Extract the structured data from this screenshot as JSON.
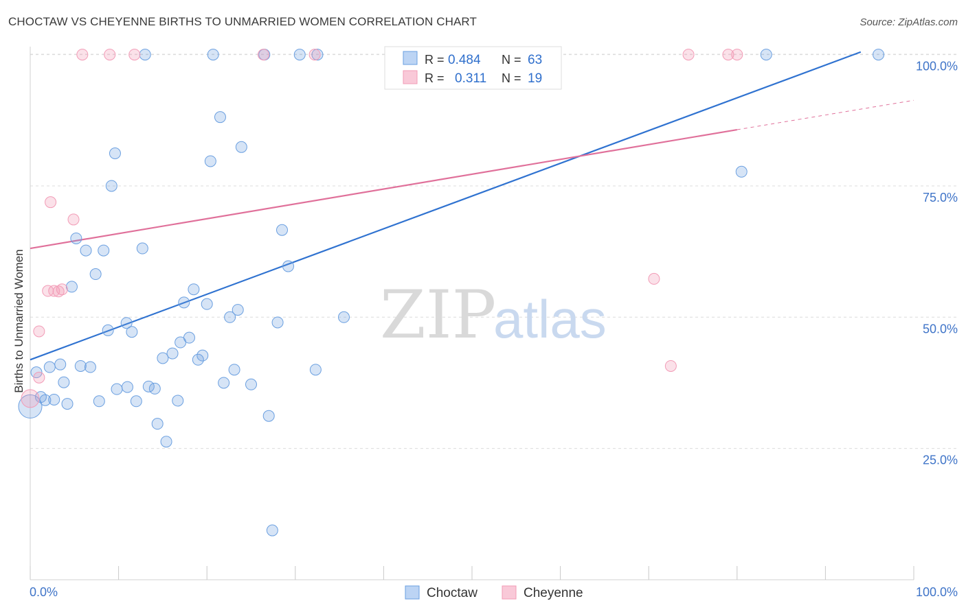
{
  "header": {
    "title": "CHOCTAW VS CHEYENNE BIRTHS TO UNMARRIED WOMEN CORRELATION CHART",
    "source": "Source: ZipAtlas.com"
  },
  "watermark": {
    "zip": "ZIP",
    "atlas": "atlas"
  },
  "legend_box": {
    "rows": [
      {
        "r_label": "R =",
        "r_value": "0.484",
        "n_label": "N =",
        "n_value": "63"
      },
      {
        "r_label": "R =",
        "r_value": "0.311",
        "n_label": "N =",
        "n_value": "19"
      }
    ]
  },
  "chart_data": {
    "type": "scatter",
    "title": "CHOCTAW VS CHEYENNE BIRTHS TO UNMARRIED WOMEN CORRELATION CHART",
    "xlabel": "",
    "ylabel": "Births to Unmarried Women",
    "xlim": [
      0,
      100
    ],
    "ylim": [
      0,
      104
    ],
    "x_tick_labels": [
      "0.0%",
      "100.0%"
    ],
    "y_ticks": [
      25,
      50,
      75,
      100
    ],
    "y_tick_labels": [
      "25.0%",
      "50.0%",
      "75.0%",
      "100.0%"
    ],
    "grid": true,
    "legend_position": "bottom-center",
    "colors": {
      "choctaw": "#6a9fe0",
      "cheyenne": "#f29bb6",
      "choctaw_line": "#2f72d0",
      "cheyenne_line": "#e0709a",
      "axis_text": "#3f74c8"
    },
    "series": [
      {
        "name": "Choctaw",
        "R": 0.484,
        "N": 63,
        "trend": {
          "x0": 0,
          "y0": 41.9,
          "x1": 94,
          "y1": 100.5
        },
        "points": [
          [
            0.0,
            33.0
          ],
          [
            0.7,
            39.5
          ],
          [
            1.2,
            34.8
          ],
          [
            1.7,
            34.2
          ],
          [
            2.2,
            40.5
          ],
          [
            2.7,
            34.3
          ],
          [
            3.4,
            41.0
          ],
          [
            3.8,
            37.6
          ],
          [
            4.2,
            33.5
          ],
          [
            4.7,
            55.8
          ],
          [
            5.2,
            65.0
          ],
          [
            5.7,
            40.7
          ],
          [
            6.3,
            62.7
          ],
          [
            6.8,
            40.5
          ],
          [
            7.4,
            58.2
          ],
          [
            7.8,
            34.0
          ],
          [
            8.3,
            62.7
          ],
          [
            8.8,
            47.5
          ],
          [
            9.2,
            75.0
          ],
          [
            9.6,
            81.2
          ],
          [
            9.8,
            36.3
          ],
          [
            10.9,
            48.9
          ],
          [
            11.0,
            36.7
          ],
          [
            11.5,
            47.2
          ],
          [
            12.0,
            34.0
          ],
          [
            12.7,
            63.1
          ],
          [
            13.0,
            100.0
          ],
          [
            13.4,
            36.8
          ],
          [
            14.1,
            36.4
          ],
          [
            14.4,
            29.7
          ],
          [
            15.0,
            42.2
          ],
          [
            15.4,
            26.3
          ],
          [
            16.1,
            43.1
          ],
          [
            16.7,
            34.1
          ],
          [
            17.0,
            45.2
          ],
          [
            17.4,
            52.8
          ],
          [
            18.0,
            46.1
          ],
          [
            18.5,
            55.3
          ],
          [
            19.0,
            41.9
          ],
          [
            19.5,
            42.7
          ],
          [
            20.0,
            52.5
          ],
          [
            20.4,
            79.7
          ],
          [
            20.7,
            100.0
          ],
          [
            21.5,
            88.1
          ],
          [
            21.9,
            37.5
          ],
          [
            22.6,
            50.0
          ],
          [
            23.1,
            40.0
          ],
          [
            23.5,
            51.4
          ],
          [
            23.9,
            82.4
          ],
          [
            25.0,
            37.2
          ],
          [
            26.5,
            100.0
          ],
          [
            27.0,
            31.2
          ],
          [
            27.4,
            9.4
          ],
          [
            28.0,
            49.0
          ],
          [
            28.5,
            66.6
          ],
          [
            29.2,
            59.7
          ],
          [
            30.5,
            100.0
          ],
          [
            32.3,
            40.0
          ],
          [
            32.5,
            100.0
          ],
          [
            35.5,
            50.0
          ],
          [
            80.5,
            77.7
          ],
          [
            83.3,
            100.0
          ],
          [
            96.0,
            100.0
          ]
        ]
      },
      {
        "name": "Cheyenne",
        "R": 0.311,
        "N": 19,
        "trend": {
          "x0": 0,
          "y0": 63.1,
          "x1": 80,
          "y1": 85.7,
          "dash_to_x": 100,
          "dash_to_y": 91.3
        },
        "points": [
          [
            0.0,
            34.5
          ],
          [
            1.0,
            38.5
          ],
          [
            1.0,
            47.3
          ],
          [
            2.0,
            55.0
          ],
          [
            2.3,
            71.9
          ],
          [
            2.7,
            55.0
          ],
          [
            3.2,
            54.9
          ],
          [
            3.6,
            55.3
          ],
          [
            4.9,
            68.6
          ],
          [
            5.9,
            100.0
          ],
          [
            9.0,
            100.0
          ],
          [
            11.8,
            100.0
          ],
          [
            26.4,
            100.0
          ],
          [
            32.2,
            100.0
          ],
          [
            70.6,
            57.3
          ],
          [
            72.5,
            40.7
          ],
          [
            74.5,
            100.0
          ],
          [
            79.0,
            100.0
          ],
          [
            80.0,
            100.0
          ]
        ]
      }
    ]
  }
}
